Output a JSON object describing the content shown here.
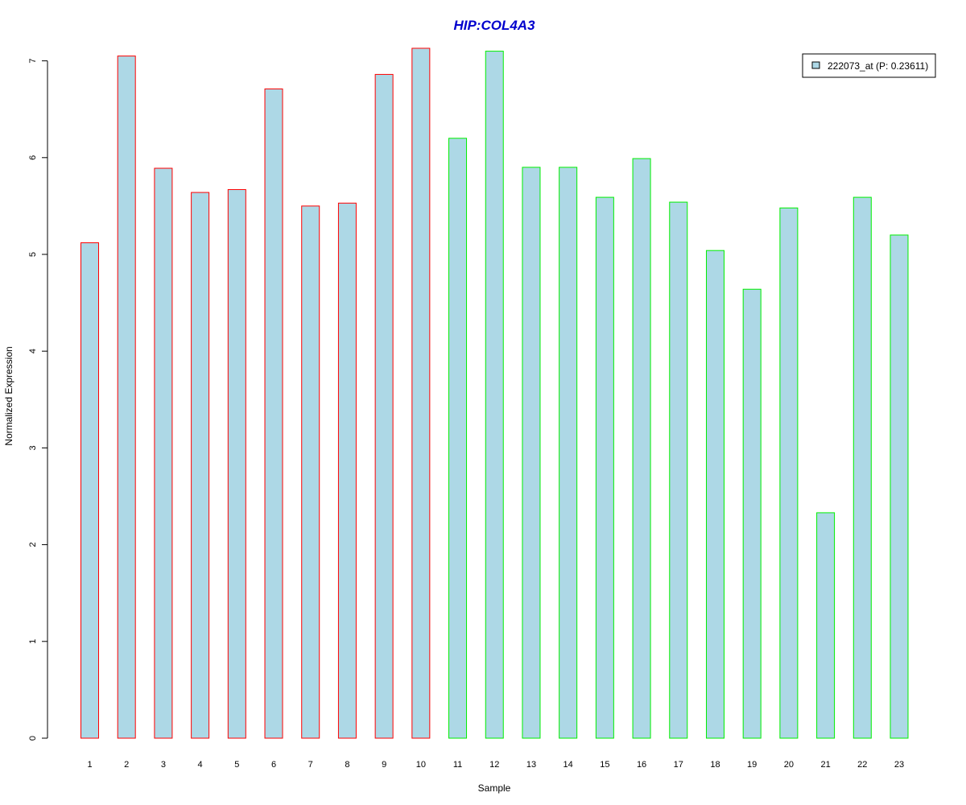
{
  "chart_data": {
    "type": "bar",
    "title": "HIP:COL4A3",
    "xlabel": "Sample",
    "ylabel": "Normalized Expression",
    "categories": [
      "1",
      "2",
      "3",
      "4",
      "5",
      "6",
      "7",
      "8",
      "9",
      "10",
      "11",
      "12",
      "13",
      "14",
      "15",
      "16",
      "17",
      "18",
      "19",
      "20",
      "21",
      "22",
      "23"
    ],
    "series": [
      {
        "name": "222073_at (P: 0.23611)",
        "values": [
          5.12,
          7.05,
          5.89,
          5.64,
          5.67,
          6.71,
          5.5,
          5.53,
          6.86,
          7.13,
          6.2,
          7.1,
          5.9,
          5.9,
          5.59,
          5.99,
          5.54,
          5.04,
          4.64,
          5.48,
          2.33,
          5.59,
          5.2
        ]
      }
    ],
    "group_colors": [
      "#ff0000",
      "#ff0000",
      "#ff0000",
      "#ff0000",
      "#ff0000",
      "#ff0000",
      "#ff0000",
      "#ff0000",
      "#ff0000",
      "#ff0000",
      "#00ee00",
      "#00ee00",
      "#00ee00",
      "#00ee00",
      "#00ee00",
      "#00ee00",
      "#00ee00",
      "#00ee00",
      "#00ee00",
      "#00ee00",
      "#00ee00",
      "#00ee00",
      "#00ee00"
    ],
    "bar_fill": "#add8e6",
    "title_color": "#0000cd",
    "yticks": [
      "0",
      "1",
      "2",
      "3",
      "4",
      "5",
      "6",
      "7"
    ],
    "ylim": [
      0,
      7.2
    ],
    "grid": false,
    "legend_position": "top-right"
  }
}
